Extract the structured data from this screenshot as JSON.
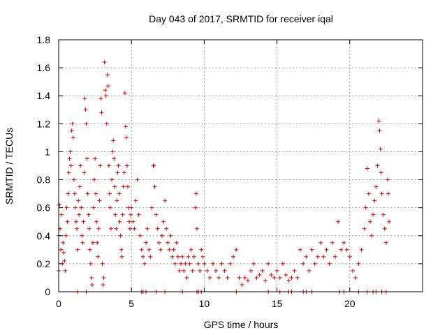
{
  "chart_data": {
    "type": "scatter",
    "title": "Day 043 of 2017, SRMTID for receiver iqal",
    "xlabel": "GPS time / hours",
    "ylabel": "SRMTID / TECUs",
    "xlim": [
      0,
      25
    ],
    "ylim": [
      0,
      1.8
    ],
    "xticks": [
      0,
      5,
      10,
      15,
      20
    ],
    "xtick_labels": [
      "0",
      "5",
      "10",
      "15",
      "20"
    ],
    "yticks": [
      0,
      0.2,
      0.4,
      0.6,
      0.8,
      1,
      1.2,
      1.4,
      1.6,
      1.8
    ],
    "ytick_labels": [
      "0",
      "0.2",
      "0.4",
      "0.6",
      "0.8",
      "1",
      "1.2",
      "1.4",
      "1.6",
      "1.8"
    ],
    "grid": true,
    "marker": "plus",
    "color": "#e00000",
    "series": [
      {
        "name": "SRMTID",
        "points": [
          [
            0.05,
            0.62
          ],
          [
            0.1,
            0.45
          ],
          [
            0.15,
            0.3
          ],
          [
            0.2,
            0.55
          ],
          [
            0.25,
            0.2
          ],
          [
            0.3,
            0.35
          ],
          [
            0.35,
            0.28
          ],
          [
            0.4,
            0.22
          ],
          [
            0.45,
            0.15
          ],
          [
            0.5,
            0.4
          ],
          [
            0.55,
            0.6
          ],
          [
            0.6,
            0.5
          ],
          [
            0.65,
            0.7
          ],
          [
            0.7,
            0.85
          ],
          [
            0.75,
            0.95
          ],
          [
            0.8,
            1.0
          ],
          [
            0.85,
            0.9
          ],
          [
            0.9,
            1.15
          ],
          [
            0.95,
            1.2
          ],
          [
            1.0,
            1.1
          ],
          [
            1.05,
            0.8
          ],
          [
            1.1,
            0.7
          ],
          [
            1.15,
            0.6
          ],
          [
            1.2,
            0.5
          ],
          [
            1.25,
            0.45
          ],
          [
            1.3,
            0.3
          ],
          [
            1.35,
            0.65
          ],
          [
            1.4,
            0.55
          ],
          [
            1.45,
            0.75
          ],
          [
            1.5,
            0.9
          ],
          [
            1.55,
            0.6
          ],
          [
            1.6,
            0.4
          ],
          [
            1.65,
            0.35
          ],
          [
            1.7,
            0.5
          ],
          [
            1.75,
            0.85
          ],
          [
            1.8,
            1.38
          ],
          [
            1.85,
            1.3
          ],
          [
            1.9,
            1.2
          ],
          [
            1.95,
            0.95
          ],
          [
            2.0,
            0.7
          ],
          [
            2.05,
            0.55
          ],
          [
            2.1,
            0.45
          ],
          [
            2.15,
            0.3
          ],
          [
            2.2,
            0.2
          ],
          [
            2.25,
            0.1
          ],
          [
            2.3,
            0.05
          ],
          [
            2.35,
            0.35
          ],
          [
            2.4,
            0.6
          ],
          [
            2.45,
            0.8
          ],
          [
            2.5,
            0.95
          ],
          [
            2.55,
            0.7
          ],
          [
            2.6,
            0.5
          ],
          [
            2.65,
            0.35
          ],
          [
            2.7,
            0.25
          ],
          [
            2.75,
            0.45
          ],
          [
            2.8,
            0.65
          ],
          [
            2.85,
            0.9
          ],
          [
            2.9,
            1.38
          ],
          [
            2.95,
            1.28
          ],
          [
            3.0,
            0.2
          ],
          [
            3.05,
            0.05
          ],
          [
            3.1,
            0.1
          ],
          [
            3.15,
            1.64
          ],
          [
            3.2,
            1.44
          ],
          [
            3.25,
            1.4
          ],
          [
            3.3,
            1.2
          ],
          [
            3.35,
            1.55
          ],
          [
            3.4,
            1.47
          ],
          [
            3.45,
            0.9
          ],
          [
            3.5,
            0.7
          ],
          [
            3.55,
            0.6
          ],
          [
            3.6,
            0.45
          ],
          [
            3.65,
            0.8
          ],
          [
            3.7,
            1.0
          ],
          [
            3.75,
            1.08
          ],
          [
            3.8,
            0.95
          ],
          [
            3.85,
            0.75
          ],
          [
            3.9,
            0.55
          ],
          [
            3.95,
            0.45
          ],
          [
            4.0,
            0.65
          ],
          [
            4.05,
            0.85
          ],
          [
            4.1,
            0.9
          ],
          [
            4.15,
            0.7
          ],
          [
            4.2,
            0.5
          ],
          [
            4.25,
            0.4
          ],
          [
            4.3,
            0.3
          ],
          [
            4.35,
            0.25
          ],
          [
            4.4,
            0.55
          ],
          [
            4.45,
            0.75
          ],
          [
            4.5,
            0.85
          ],
          [
            4.55,
            1.42
          ],
          [
            4.6,
            1.18
          ],
          [
            4.65,
            1.1
          ],
          [
            4.7,
            0.9
          ],
          [
            4.75,
            0.75
          ],
          [
            4.8,
            0.6
          ],
          [
            4.85,
            0.5
          ],
          [
            4.9,
            0.45
          ],
          [
            4.95,
            0.55
          ],
          [
            5.0,
            0.6
          ],
          [
            5.1,
            0.5
          ],
          [
            5.2,
            0.45
          ],
          [
            5.3,
            0.65
          ],
          [
            5.4,
            0.8
          ],
          [
            5.5,
            0.55
          ],
          [
            5.6,
            0.4
          ],
          [
            5.7,
            0.3
          ],
          [
            5.8,
            0.25
          ],
          [
            5.9,
            0.2
          ],
          [
            6.0,
            0.35
          ],
          [
            6.1,
            0.45
          ],
          [
            6.2,
            0.3
          ],
          [
            6.3,
            0.25
          ],
          [
            6.4,
            0.6
          ],
          [
            6.5,
            0.9
          ],
          [
            6.55,
            0.9
          ],
          [
            6.6,
            0.75
          ],
          [
            6.7,
            0.55
          ],
          [
            6.8,
            0.45
          ],
          [
            6.9,
            0.35
          ],
          [
            7.0,
            0.3
          ],
          [
            7.1,
            0.4
          ],
          [
            7.2,
            0.5
          ],
          [
            7.3,
            0.65
          ],
          [
            7.4,
            0.45
          ],
          [
            7.5,
            0.35
          ],
          [
            7.6,
            0.3
          ],
          [
            7.7,
            0.4
          ],
          [
            7.8,
            0.25
          ],
          [
            7.9,
            0.3
          ],
          [
            8.0,
            0.2
          ],
          [
            8.1,
            0.35
          ],
          [
            8.2,
            0.25
          ],
          [
            8.3,
            0.15
          ],
          [
            8.4,
            0.2
          ],
          [
            8.5,
            0.25
          ],
          [
            8.6,
            0.15
          ],
          [
            8.7,
            0.2
          ],
          [
            8.8,
            0.1
          ],
          [
            8.9,
            0.25
          ],
          [
            9.0,
            0.2
          ],
          [
            9.1,
            0.3
          ],
          [
            9.2,
            0.15
          ],
          [
            9.3,
            0.25
          ],
          [
            9.4,
            0.6
          ],
          [
            9.45,
            0.7
          ],
          [
            9.5,
            0.45
          ],
          [
            9.6,
            0.2
          ],
          [
            9.7,
            0.15
          ],
          [
            9.8,
            0.3
          ],
          [
            9.9,
            0.25
          ],
          [
            10.0,
            0.2
          ],
          [
            10.2,
            0.15
          ],
          [
            10.4,
            0.1
          ],
          [
            10.6,
            0.2
          ],
          [
            10.8,
            0.15
          ],
          [
            11.0,
            0.1
          ],
          [
            11.2,
            0.2
          ],
          [
            11.4,
            0.15
          ],
          [
            11.6,
            0.1
          ],
          [
            11.8,
            0.2
          ],
          [
            12.0,
            0.25
          ],
          [
            12.2,
            0.3
          ],
          [
            12.4,
            0.1
          ],
          [
            12.6,
            0.05
          ],
          [
            12.8,
            0.1
          ],
          [
            13.0,
            0.08
          ],
          [
            13.2,
            0.15
          ],
          [
            13.4,
            0.2
          ],
          [
            13.6,
            0.1
          ],
          [
            13.8,
            0.12
          ],
          [
            14.0,
            0.15
          ],
          [
            14.2,
            0.08
          ],
          [
            14.4,
            0.2
          ],
          [
            14.6,
            0.12
          ],
          [
            14.8,
            0.1
          ],
          [
            15.0,
            0.15
          ],
          [
            15.2,
            0.1
          ],
          [
            15.4,
            0.2
          ],
          [
            15.6,
            0.12
          ],
          [
            15.8,
            0.08
          ],
          [
            16.0,
            0.1
          ],
          [
            16.2,
            0.15
          ],
          [
            16.4,
            0.1
          ],
          [
            16.6,
            0.3
          ],
          [
            16.8,
            0.2
          ],
          [
            17.0,
            0.25
          ],
          [
            17.2,
            0.15
          ],
          [
            17.4,
            0.3
          ],
          [
            17.6,
            0.2
          ],
          [
            17.8,
            0.25
          ],
          [
            18.0,
            0.35
          ],
          [
            18.2,
            0.25
          ],
          [
            18.4,
            0.3
          ],
          [
            18.6,
            0.2
          ],
          [
            18.8,
            0.35
          ],
          [
            19.0,
            0.25
          ],
          [
            19.2,
            0.5
          ],
          [
            19.4,
            0.3
          ],
          [
            19.6,
            0.35
          ],
          [
            19.8,
            0.3
          ],
          [
            20.0,
            0.25
          ],
          [
            20.2,
            0.15
          ],
          [
            20.4,
            0.1
          ],
          [
            20.6,
            0.2
          ],
          [
            20.8,
            0.3
          ],
          [
            21.0,
            0.45
          ],
          [
            21.1,
            0.6
          ],
          [
            21.2,
            0.88
          ],
          [
            21.3,
            0.7
          ],
          [
            21.4,
            0.5
          ],
          [
            21.5,
            0.4
          ],
          [
            21.6,
            0.55
          ],
          [
            21.7,
            0.65
          ],
          [
            21.8,
            0.75
          ],
          [
            21.9,
            0.9
          ],
          [
            22.0,
            1.22
          ],
          [
            22.05,
            1.15
          ],
          [
            22.1,
            1.02
          ],
          [
            22.15,
            0.85
          ],
          [
            22.2,
            0.7
          ],
          [
            22.3,
            0.55
          ],
          [
            22.4,
            0.45
          ],
          [
            22.5,
            0.35
          ],
          [
            22.6,
            0.8
          ],
          [
            22.65,
            0.7
          ],
          [
            22.7,
            0.5
          ],
          [
            0.0,
            0.4
          ],
          [
            0.0,
            0.15
          ],
          [
            1.3,
            0.0
          ],
          [
            1.9,
            0.0
          ],
          [
            5.7,
            0.0
          ],
          [
            5.8,
            0.0
          ],
          [
            6.0,
            0.0
          ],
          [
            6.7,
            0.0
          ],
          [
            7.3,
            0.0
          ],
          [
            8.5,
            0.0
          ],
          [
            9.5,
            0.0
          ],
          [
            9.6,
            0.0
          ],
          [
            9.8,
            0.0
          ],
          [
            12.2,
            0.0
          ],
          [
            14.4,
            0.0
          ],
          [
            15.2,
            0.0
          ],
          [
            15.8,
            0.0
          ],
          [
            16.0,
            0.0
          ],
          [
            16.8,
            0.0
          ],
          [
            17.0,
            0.0
          ],
          [
            17.4,
            0.0
          ],
          [
            19.3,
            0.0
          ],
          [
            19.6,
            0.0
          ],
          [
            20.6,
            0.0
          ],
          [
            21.2,
            0.0
          ],
          [
            21.6,
            0.0
          ],
          [
            21.8,
            0.0
          ],
          [
            22.2,
            0.0
          ],
          [
            22.5,
            0.0
          ]
        ]
      }
    ]
  }
}
